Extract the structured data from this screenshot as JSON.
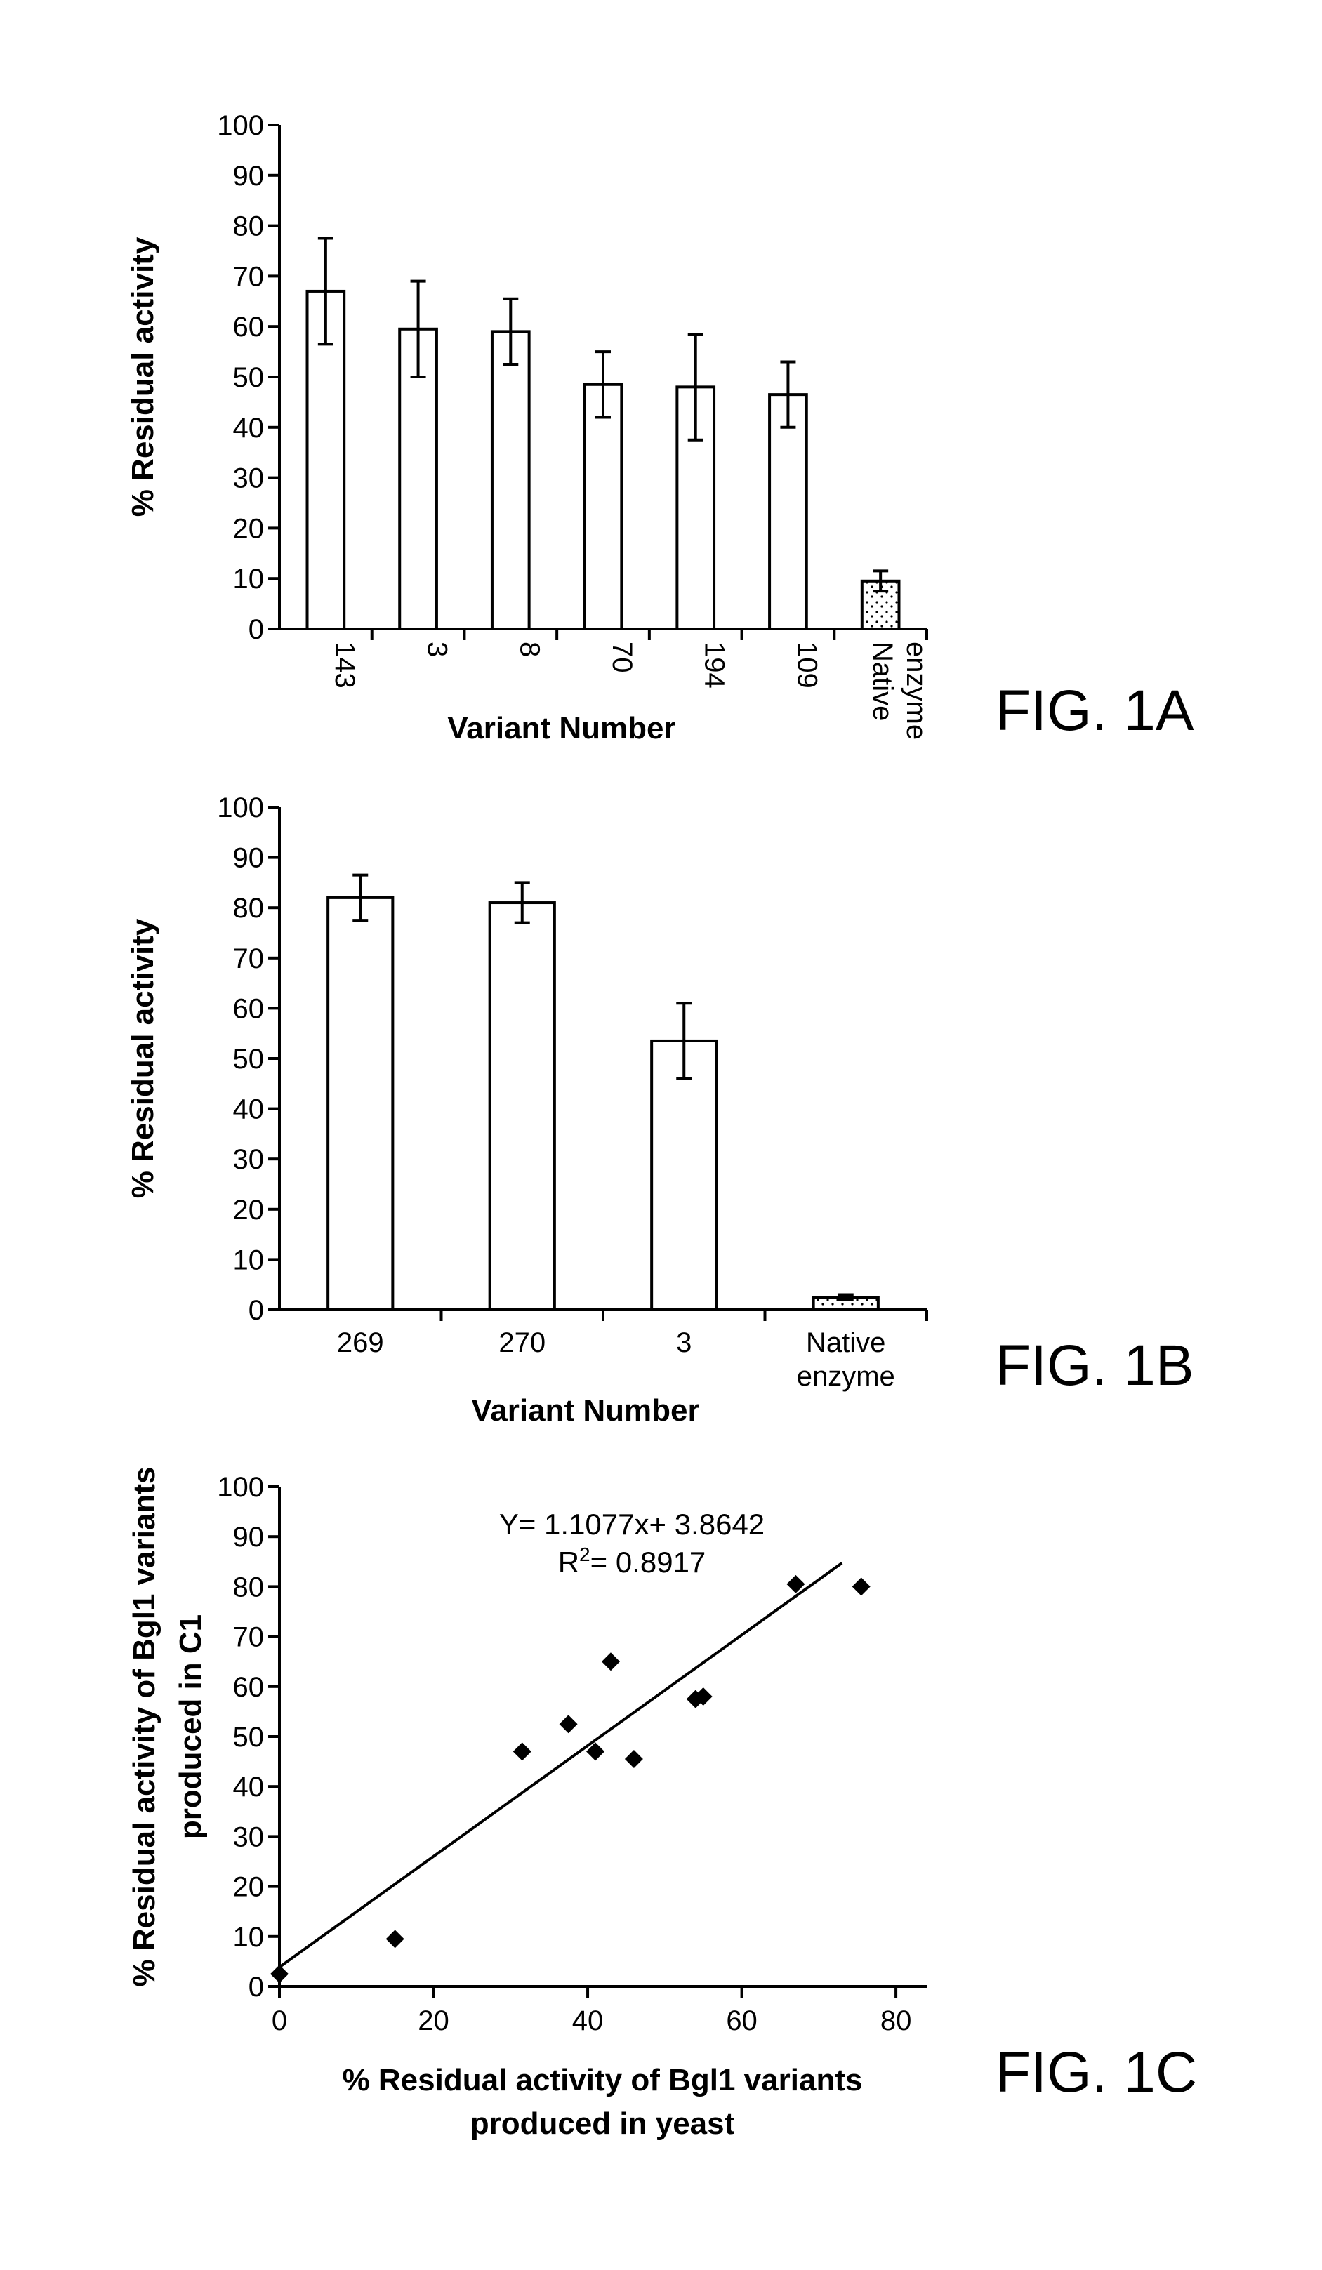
{
  "figure_labels": [
    "FIG. 1A",
    "FIG. 1B",
    "FIG. 1C"
  ],
  "colors": {
    "bar_fill": "#ffffff",
    "native_fill": "#f2f2f2",
    "stroke": "#000000"
  },
  "chart_data": [
    {
      "type": "bar",
      "figure_label": "FIG. 1A",
      "categories": [
        "143",
        "3",
        "8",
        "70",
        "194",
        "109",
        "Native\nenzyme"
      ],
      "values": [
        67,
        59.5,
        59,
        48.5,
        48,
        46.5,
        9.5
      ],
      "error": [
        10.5,
        9.5,
        6.5,
        6.5,
        10.5,
        6.5,
        2
      ],
      "patterned": [
        false,
        false,
        false,
        false,
        false,
        false,
        true
      ],
      "xlabel": "Variant Number",
      "ylabel": "% Residual activity",
      "ylim": [
        0,
        100
      ],
      "yticks": [
        0,
        10,
        20,
        30,
        40,
        50,
        60,
        70,
        80,
        90,
        100
      ],
      "tick_label_rotation": "vertical",
      "grid": false
    },
    {
      "type": "bar",
      "figure_label": "FIG. 1B",
      "categories": [
        "269",
        "270",
        "3",
        "Native\nenzyme"
      ],
      "values": [
        82,
        81,
        53.5,
        2.5
      ],
      "error": [
        4.5,
        4,
        7.5,
        0.5
      ],
      "patterned": [
        false,
        false,
        false,
        true
      ],
      "xlabel": "Variant Number",
      "ylabel": "% Residual activity",
      "ylim": [
        0,
        100
      ],
      "yticks": [
        0,
        10,
        20,
        30,
        40,
        50,
        60,
        70,
        80,
        90,
        100
      ],
      "tick_label_rotation": "horizontal",
      "grid": false
    },
    {
      "type": "scatter",
      "figure_label": "FIG. 1C",
      "points": [
        {
          "x": 0,
          "y": 2.5
        },
        {
          "x": 15,
          "y": 9.5
        },
        {
          "x": 31.5,
          "y": 47
        },
        {
          "x": 37.5,
          "y": 52.5
        },
        {
          "x": 41,
          "y": 47
        },
        {
          "x": 43,
          "y": 65
        },
        {
          "x": 46,
          "y": 45.5
        },
        {
          "x": 54,
          "y": 57.5
        },
        {
          "x": 55,
          "y": 58
        },
        {
          "x": 67,
          "y": 80.5
        },
        {
          "x": 75.5,
          "y": 80
        }
      ],
      "fit": {
        "slope": 1.1077,
        "intercept": 3.8642,
        "x_range": [
          0,
          73
        ]
      },
      "equation": "Y= 1.1077x+ 3.8642",
      "r2_label": "R",
      "r2_superscript": "2",
      "r2_value": "= 0.8917",
      "xlabel_lines": [
        "% Residual activity of Bgl1 variants",
        "produced in yeast"
      ],
      "ylabel_lines": [
        "% Residual activity of Bgl1 variants",
        "produced in C1"
      ],
      "xlim": [
        0,
        84
      ],
      "ylim": [
        0,
        100
      ],
      "xticks": [
        0,
        20,
        40,
        60,
        80
      ],
      "yticks": [
        0,
        10,
        20,
        30,
        40,
        50,
        60,
        70,
        80,
        90,
        100
      ],
      "marker": "diamond",
      "grid": false
    }
  ]
}
